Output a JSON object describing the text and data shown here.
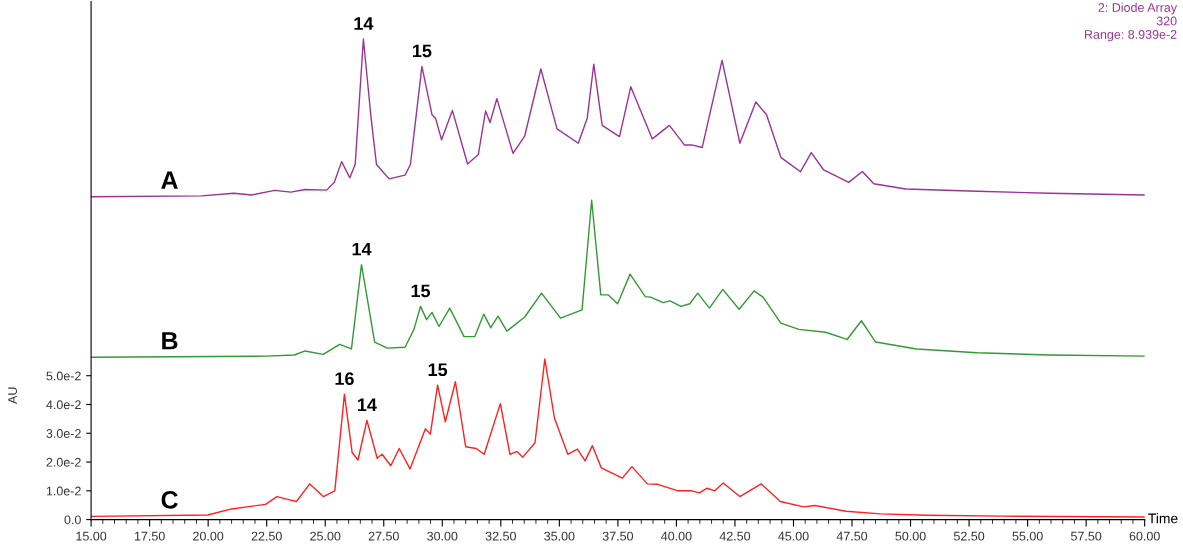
{
  "chart_data": {
    "type": "line",
    "xlabel": "Time",
    "ylabel": "AU",
    "xlim": [
      15,
      60
    ],
    "xticks": [
      {
        "value": 15,
        "label": "15.00"
      },
      {
        "value": 17.5,
        "label": "17.50"
      },
      {
        "value": 20,
        "label": "20.00"
      },
      {
        "value": 22.5,
        "label": "22.50"
      },
      {
        "value": 25,
        "label": "25.00"
      },
      {
        "value": 27.5,
        "label": "27.50"
      },
      {
        "value": 30,
        "label": "30.00"
      },
      {
        "value": 32.5,
        "label": "32.50"
      },
      {
        "value": 35,
        "label": "35.00"
      },
      {
        "value": 37.5,
        "label": "37.50"
      },
      {
        "value": 40,
        "label": "40.00"
      },
      {
        "value": 42.5,
        "label": "42.50"
      },
      {
        "value": 45,
        "label": "45.00"
      },
      {
        "value": 47.5,
        "label": "47.50"
      },
      {
        "value": 50,
        "label": "50.00"
      },
      {
        "value": 52.5,
        "label": "52.50"
      },
      {
        "value": 55,
        "label": "55.00"
      },
      {
        "value": 57.5,
        "label": "57.50"
      },
      {
        "value": 60,
        "label": "60.00"
      }
    ],
    "ylim": [
      0,
      0.18
    ],
    "yticks": [
      {
        "value": 0,
        "label": "0.0"
      },
      {
        "value": 0.01,
        "label": "1.0e-2"
      },
      {
        "value": 0.02,
        "label": "2.0e-2"
      },
      {
        "value": 0.03,
        "label": "3.0e-2"
      },
      {
        "value": 0.04,
        "label": "4.0e-2"
      },
      {
        "value": 0.05,
        "label": "5.0e-2"
      }
    ],
    "grid": false,
    "legend": false,
    "marker": "none",
    "line_style": "solid",
    "series": [
      {
        "name": "A",
        "color": "#993399",
        "x": [
          15,
          19.72,
          21.09,
          21.85,
          22.84,
          23.53,
          24.14,
          25.06,
          25.39,
          25.7,
          26.05,
          26.28,
          26.63,
          26.96,
          27.19,
          27.73,
          28.41,
          28.64,
          29.13,
          29.56,
          29.71,
          29.97,
          30.43,
          31.08,
          31.54,
          31.85,
          32.04,
          32.33,
          33.02,
          33.52,
          34.21,
          34.9,
          35.81,
          36.19,
          36.47,
          36.83,
          37.57,
          38.05,
          38.97,
          39.7,
          40.34,
          40.65,
          41.1,
          41.95,
          42.71,
          43.39,
          43.85,
          44.46,
          45.3,
          45.76,
          46.29,
          47.36,
          47.94,
          48.43,
          49.8,
          52.85,
          55.91,
          60
        ],
        "values": [
          0.1122,
          0.1125,
          0.1134,
          0.1128,
          0.1144,
          0.1138,
          0.1147,
          0.1145,
          0.1172,
          0.1244,
          0.1188,
          0.1234,
          0.167,
          0.1395,
          0.1234,
          0.1184,
          0.1197,
          0.1234,
          0.1575,
          0.1407,
          0.1395,
          0.132,
          0.1422,
          0.1236,
          0.1269,
          0.142,
          0.138,
          0.1463,
          0.1273,
          0.1333,
          0.1566,
          0.1358,
          0.1308,
          0.1395,
          0.1583,
          0.137,
          0.1331,
          0.1504,
          0.1323,
          0.137,
          0.1302,
          0.1302,
          0.1293,
          0.1596,
          0.1308,
          0.1451,
          0.1407,
          0.1259,
          0.1209,
          0.1275,
          0.1215,
          0.1172,
          0.121,
          0.1167,
          0.1149,
          0.1141,
          0.1134,
          0.1128
        ]
      },
      {
        "name": "B",
        "color": "#339933",
        "x": [
          15,
          22.46,
          23.68,
          24.14,
          24.91,
          25.62,
          26.12,
          26.55,
          27.11,
          27.65,
          28.41,
          28.79,
          29.07,
          29.33,
          29.56,
          29.86,
          30.32,
          30.93,
          31.39,
          31.77,
          32.07,
          32.38,
          32.76,
          33.52,
          34.24,
          35.05,
          35.58,
          35.97,
          36.38,
          36.77,
          37.08,
          37.49,
          38.02,
          38.67,
          38.9,
          39.43,
          39.73,
          40.19,
          40.57,
          40.91,
          41.41,
          41.98,
          42.68,
          43.32,
          43.7,
          44.46,
          45.23,
          46.37,
          47.29,
          47.9,
          48.51,
          50.26,
          52.85,
          55.91,
          60
        ],
        "values": [
          0.0564,
          0.0568,
          0.0572,
          0.0586,
          0.0574,
          0.0609,
          0.0593,
          0.0886,
          0.0617,
          0.0596,
          0.0599,
          0.0661,
          0.0741,
          0.0695,
          0.072,
          0.0671,
          0.0735,
          0.0636,
          0.0636,
          0.0714,
          0.0667,
          0.0707,
          0.0655,
          0.0704,
          0.0787,
          0.07,
          0.0717,
          0.0729,
          0.111,
          0.0781,
          0.0781,
          0.075,
          0.0853,
          0.0775,
          0.0773,
          0.0754,
          0.076,
          0.0741,
          0.075,
          0.0787,
          0.0735,
          0.08,
          0.0731,
          0.0795,
          0.0773,
          0.0683,
          0.0661,
          0.0651,
          0.0626,
          0.0691,
          0.0617,
          0.0593,
          0.058,
          0.0572,
          0.0568
        ]
      },
      {
        "name": "C",
        "color": "#ff2020",
        "x": [
          15,
          19.98,
          21.0,
          22.45,
          22.94,
          23.35,
          23.77,
          24.34,
          24.92,
          25.41,
          25.82,
          26.15,
          26.4,
          26.78,
          27.22,
          27.43,
          27.8,
          28.16,
          28.62,
          29.28,
          29.49,
          29.8,
          30.13,
          30.56,
          31.0,
          31.45,
          31.79,
          32.48,
          32.89,
          33.19,
          33.44,
          33.96,
          34.38,
          34.79,
          35.36,
          35.77,
          36.1,
          36.41,
          36.79,
          37.69,
          38.1,
          38.76,
          39.17,
          40.07,
          40.65,
          40.98,
          41.31,
          41.64,
          42.0,
          42.71,
          43.62,
          44.44,
          45.43,
          45.92,
          47.24,
          48.72,
          50.7,
          53.98,
          60
        ],
        "values": [
          0.0011,
          0.0016,
          0.0037,
          0.0053,
          0.008,
          0.0071,
          0.0063,
          0.0124,
          0.008,
          0.01,
          0.0436,
          0.0233,
          0.0207,
          0.0345,
          0.0213,
          0.0227,
          0.0187,
          0.0247,
          0.0176,
          0.0316,
          0.0297,
          0.0467,
          0.034,
          0.0479,
          0.0253,
          0.0247,
          0.0227,
          0.0403,
          0.0227,
          0.0237,
          0.0217,
          0.0267,
          0.0558,
          0.0353,
          0.0227,
          0.0245,
          0.0204,
          0.0257,
          0.018,
          0.0144,
          0.0184,
          0.0124,
          0.0123,
          0.01,
          0.01,
          0.0093,
          0.0109,
          0.01,
          0.0127,
          0.008,
          0.0124,
          0.0063,
          0.0044,
          0.0049,
          0.0029,
          0.002,
          0.0015,
          0.0012,
          0.0009
        ]
      }
    ],
    "annotations": [
      {
        "text": "14",
        "x": 26.63,
        "y": 0.167
      },
      {
        "text": "15",
        "x": 29.13,
        "y": 0.1575
      },
      {
        "text": "14",
        "x": 26.55,
        "y": 0.0886
      },
      {
        "text": "15",
        "x": 29.07,
        "y": 0.0741
      },
      {
        "text": "16",
        "x": 25.82,
        "y": 0.0436
      },
      {
        "text": "14",
        "x": 26.78,
        "y": 0.0345
      },
      {
        "text": "15",
        "x": 29.8,
        "y": 0.0467
      },
      "2: Diode Array\n320\nRange: 8.939e-2"
    ]
  }
}
